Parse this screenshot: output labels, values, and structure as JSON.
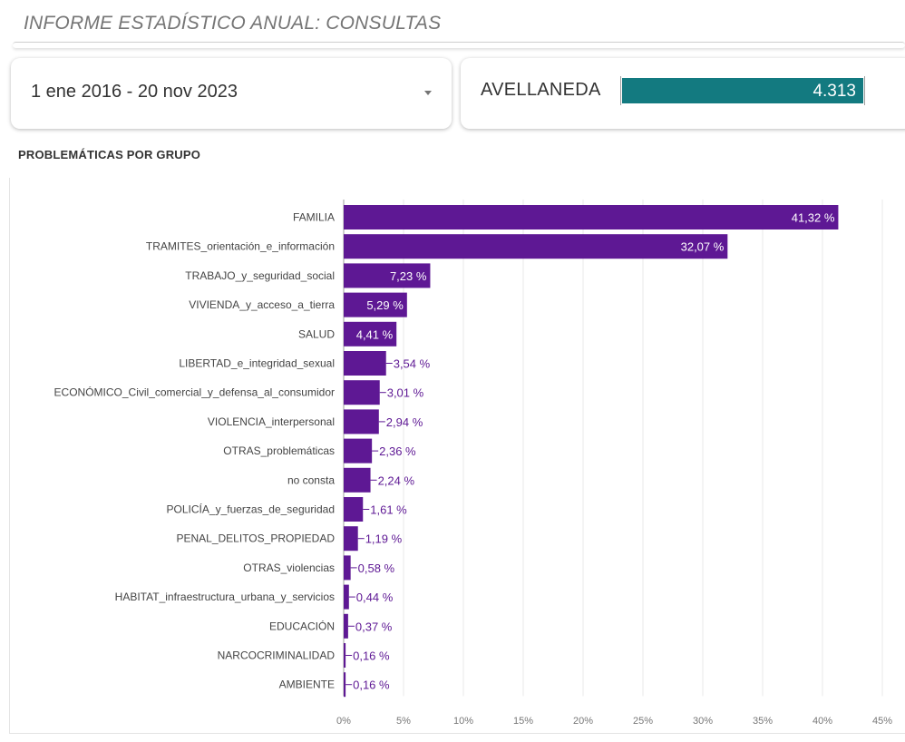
{
  "header": {
    "title": "INFORME ESTADÍSTICO ANUAL: CONSULTAS"
  },
  "filters": {
    "date_range": "1 ene 2016 - 20 nov 2023",
    "dropdown_icon": "caret-down-icon"
  },
  "scorecard": {
    "label": "AVELLANEDA",
    "value": "4.313",
    "bar_color": "#137a80"
  },
  "section": {
    "title": "PROBLEMÁTICAS POR GRUPO"
  },
  "colors": {
    "bar": "#5e1894",
    "label_inside": "#ffffff",
    "label_outside": "#5e1894",
    "grid": "#e8e8e8"
  },
  "chart_data": {
    "type": "bar",
    "orientation": "horizontal",
    "title": "",
    "xlabel": "",
    "ylabel": "",
    "xlim": [
      0,
      45
    ],
    "ticks": [
      "0%",
      "5%",
      "10%",
      "15%",
      "20%",
      "25%",
      "30%",
      "35%",
      "40%",
      "45%"
    ],
    "grid": true,
    "categories": [
      "FAMILIA",
      "TRAMITES_orientación_e_información",
      "TRABAJO_y_seguridad_social",
      "VIVIENDA_y_acceso_a_tierra",
      "SALUD",
      "LIBERTAD_e_integridad_sexual",
      "ECONÓMICO_Civil_comercial_y_defensa_al_consumidor",
      "VIOLENCIA_interpersonal",
      "OTRAS_problemáticas",
      "no consta",
      "POLICÍA_y_fuerzas_de_seguridad",
      "PENAL_DELITOS_PROPIEDAD",
      "OTRAS_violencias",
      "HABITAT_infraestructura_urbana_y_servicios",
      "EDUCACIÓN",
      "NARCOCRIMINALIDAD",
      "AMBIENTE"
    ],
    "values": [
      41.32,
      32.07,
      7.23,
      5.29,
      4.41,
      3.54,
      3.01,
      2.94,
      2.36,
      2.24,
      1.61,
      1.19,
      0.58,
      0.44,
      0.37,
      0.16,
      0.16
    ],
    "value_labels": [
      "41,32 %",
      "32,07 %",
      "7,23 %",
      "5,29 %",
      "4,41 %",
      "3,54 %",
      "3,01 %",
      "2,94 %",
      "2,36 %",
      "2,24 %",
      "1,61 %",
      "1,19 %",
      "0,58 %",
      "0,44 %",
      "0,37 %",
      "0,16 %",
      "0,16 %"
    ]
  }
}
